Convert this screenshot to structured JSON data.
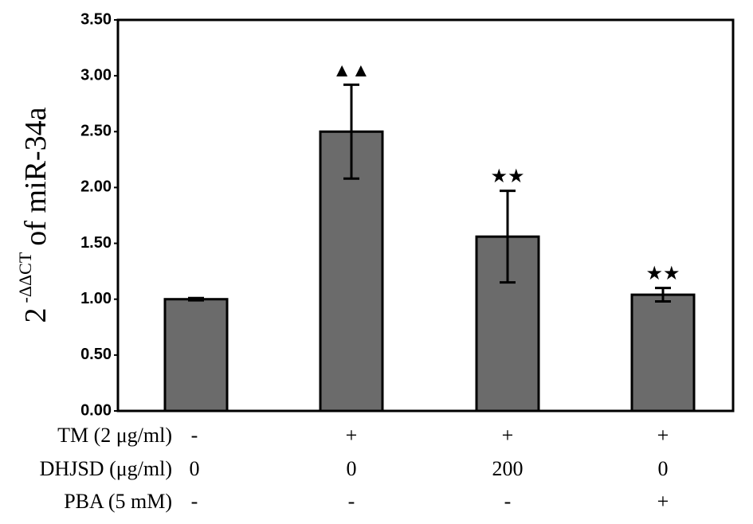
{
  "chart_data": {
    "type": "bar",
    "ylabel": {
      "base": "2",
      "sup": "-ΔΔCT",
      "rest": "of miR-34a"
    },
    "categories": [
      null,
      null,
      null,
      null
    ],
    "values": [
      1.0,
      2.5,
      1.56,
      1.04
    ],
    "errors": [
      0.01,
      0.42,
      0.41,
      0.06
    ],
    "annotations": [
      null,
      "▲▲",
      "★★",
      "★★"
    ],
    "color": "#6b6b6b",
    "ylim": [
      0,
      3.5
    ],
    "yticks": [
      {
        "value": 0,
        "label": "0.00"
      },
      {
        "value": 0.5,
        "label": "0.50"
      },
      {
        "value": 1,
        "label": "1.00"
      },
      {
        "value": 1.5,
        "label": "1.50"
      },
      {
        "value": 2,
        "label": "2.00"
      },
      {
        "value": 2.5,
        "label": "2.50"
      },
      {
        "value": 3,
        "label": "3.00"
      },
      {
        "value": 3.5,
        "label": "3.50"
      }
    ],
    "grid": false,
    "conditions": [
      {
        "label": "TM (2 μg/ml)",
        "cells": [
          "-",
          "+",
          "+",
          "+"
        ]
      },
      {
        "label": "DHJSD (μg/ml)",
        "cells": [
          0,
          0,
          200,
          0
        ]
      },
      {
        "label": "PBA (5 mM)",
        "cells": [
          "-",
          "-",
          "-",
          "+"
        ]
      }
    ]
  }
}
